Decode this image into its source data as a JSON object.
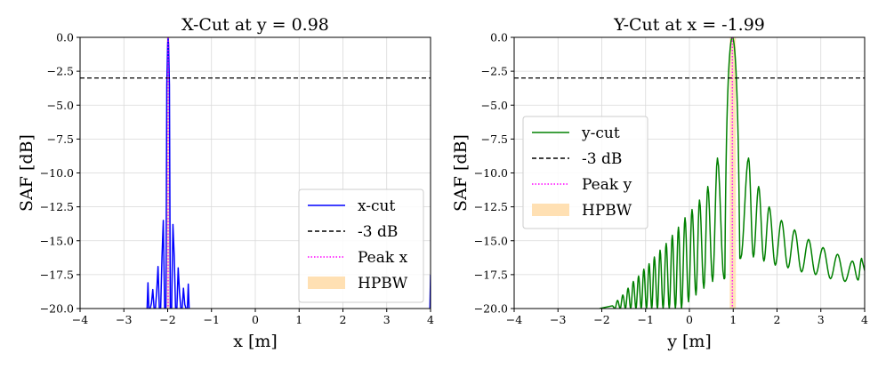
{
  "chart_data": [
    {
      "type": "line",
      "title": "X-Cut at y = 0.98",
      "xlabel": "x [m]",
      "ylabel": "SAF [dB]",
      "xlim": [
        -4,
        4
      ],
      "ylim": [
        -20,
        0
      ],
      "xticks": [
        -4,
        -3,
        -2,
        -1,
        0,
        1,
        2,
        3,
        4
      ],
      "xtick_labels": [
        "−4",
        "−3",
        "−2",
        "−1",
        "0",
        "1",
        "2",
        "3",
        "4"
      ],
      "yticks": [
        0,
        -2.5,
        -5,
        -7.5,
        -10,
        -12.5,
        -15,
        -17.5,
        -20
      ],
      "ytick_labels": [
        "0.0",
        "−2.5",
        "−5.0",
        "−7.5",
        "−10.0",
        "−12.5",
        "−15.0",
        "−17.5",
        "−20.0"
      ],
      "grid": true,
      "legend_position": "lower-right",
      "threshold_db": -3,
      "peak": -1.99,
      "hpbw": [
        -2.02,
        -1.96
      ],
      "series": [
        {
          "name": "x-cut",
          "color": "#0000ff",
          "style": "solid",
          "x": [
            -2.47,
            -2.45,
            -2.43,
            -2.4,
            -2.37,
            -2.34,
            -2.31,
            -2.28,
            -2.25,
            -2.22,
            -2.19,
            -2.16,
            -2.13,
            -2.1,
            -2.07,
            -2.04,
            -2.02,
            -2.0,
            -1.99,
            -1.98,
            -1.96,
            -1.94,
            -1.91,
            -1.88,
            -1.85,
            -1.82,
            -1.79,
            -1.76,
            -1.73,
            -1.7,
            -1.67,
            -1.64,
            -1.61,
            -1.58,
            -1.55,
            -1.53,
            -1.51
          ],
          "y": [
            -20,
            -18.1,
            -20,
            -20,
            -19.6,
            -18.6,
            -20,
            -20,
            -18.7,
            -16.9,
            -20,
            -20,
            -16.2,
            -13.5,
            -20,
            -20,
            -3.5,
            -0.5,
            0,
            -0.5,
            -3.5,
            -20,
            -20,
            -13.8,
            -16.2,
            -20,
            -20,
            -17.0,
            -18.8,
            -20,
            -20,
            -18.5,
            -19.7,
            -20,
            -20,
            -18.2,
            -20
          ]
        },
        {
          "name": "-3 dB",
          "color": "#000000",
          "style": "dashed"
        },
        {
          "name": "Peak x",
          "color": "#ff00ff",
          "style": "dotted"
        },
        {
          "name": "HPBW",
          "color": "#ffe0b3",
          "style": "band"
        }
      ]
    },
    {
      "type": "line",
      "title": "Y-Cut at x = -1.99",
      "xlabel": "y [m]",
      "ylabel": "SAF [dB]",
      "xlim": [
        -4,
        4
      ],
      "ylim": [
        -20,
        0
      ],
      "xticks": [
        -4,
        -3,
        -2,
        -1,
        0,
        1,
        2,
        3,
        4
      ],
      "xtick_labels": [
        "−4",
        "−3",
        "−2",
        "−1",
        "0",
        "1",
        "2",
        "3",
        "4"
      ],
      "yticks": [
        0,
        -2.5,
        -5,
        -7.5,
        -10,
        -12.5,
        -15,
        -17.5,
        -20
      ],
      "ytick_labels": [
        "0.0",
        "−2.5",
        "−5.0",
        "−7.5",
        "−10.0",
        "−12.5",
        "−15.0",
        "−17.5",
        "−20.0"
      ],
      "grid": true,
      "legend_position": "center-left",
      "threshold_db": -3,
      "peak": 0.98,
      "hpbw": [
        0.92,
        1.06
      ],
      "series": [
        {
          "name": "y-cut",
          "color": "#008000",
          "style": "solid",
          "oscillation": {
            "x_start": -2.05,
            "x_end": 4.0,
            "main_lobe": [
              0.79,
              1.17
            ],
            "peak_x": 0.98,
            "lobe_peaks": [
              [
                -1.76,
                -19.8
              ],
              [
                -1.64,
                -19.4
              ],
              [
                -1.52,
                -19.0
              ],
              [
                -1.4,
                -18.5
              ],
              [
                -1.28,
                -18.0
              ],
              [
                -1.16,
                -17.6
              ],
              [
                -1.04,
                -17.1
              ],
              [
                -0.92,
                -16.7
              ],
              [
                -0.8,
                -16.2
              ],
              [
                -0.67,
                -15.7
              ],
              [
                -0.53,
                -15.2
              ],
              [
                -0.39,
                -14.6
              ],
              [
                -0.25,
                -14.0
              ],
              [
                -0.1,
                -13.3
              ],
              [
                0.06,
                -12.7
              ],
              [
                0.23,
                -12.0
              ],
              [
                0.42,
                -11.0
              ],
              [
                0.64,
                -8.9
              ],
              [
                1.35,
                -8.9
              ],
              [
                1.58,
                -11.0
              ],
              [
                1.82,
                -12.5
              ],
              [
                2.1,
                -13.5
              ],
              [
                2.4,
                -14.2
              ],
              [
                2.72,
                -14.9
              ],
              [
                3.05,
                -15.5
              ],
              [
                3.38,
                -16.0
              ],
              [
                3.72,
                -16.5
              ],
              [
                3.93,
                -16.3
              ]
            ],
            "troughs": [
              [
                -1.7,
                -20.0
              ],
              [
                -1.58,
                -20.0
              ],
              [
                -1.46,
                -20.0
              ],
              [
                -1.34,
                -20.0
              ],
              [
                -1.22,
                -20.0
              ],
              [
                -1.1,
                -20.0
              ],
              [
                -0.98,
                -20.0
              ],
              [
                -0.86,
                -20.0
              ],
              [
                -0.73,
                -20.0
              ],
              [
                -0.6,
                -20.0
              ],
              [
                -0.46,
                -20.0
              ],
              [
                -0.32,
                -20.0
              ],
              [
                -0.18,
                -20.0
              ],
              [
                -0.02,
                -19.5
              ],
              [
                0.15,
                -19.0
              ],
              [
                0.33,
                -18.5
              ],
              [
                0.53,
                -18.0
              ],
              [
                0.79,
                -17.8
              ],
              [
                1.17,
                -16.3
              ],
              [
                1.46,
                -16.2
              ],
              [
                1.7,
                -16.5
              ],
              [
                1.96,
                -16.8
              ],
              [
                2.25,
                -17.0
              ],
              [
                2.56,
                -17.3
              ],
              [
                2.88,
                -17.5
              ],
              [
                3.22,
                -17.8
              ],
              [
                3.55,
                -18.0
              ],
              [
                3.85,
                -17.9
              ]
            ]
          }
        },
        {
          "name": "-3 dB",
          "color": "#000000",
          "style": "dashed"
        },
        {
          "name": "Peak y",
          "color": "#ff00ff",
          "style": "dotted"
        },
        {
          "name": "HPBW",
          "color": "#ffe0b3",
          "style": "band"
        }
      ]
    }
  ]
}
